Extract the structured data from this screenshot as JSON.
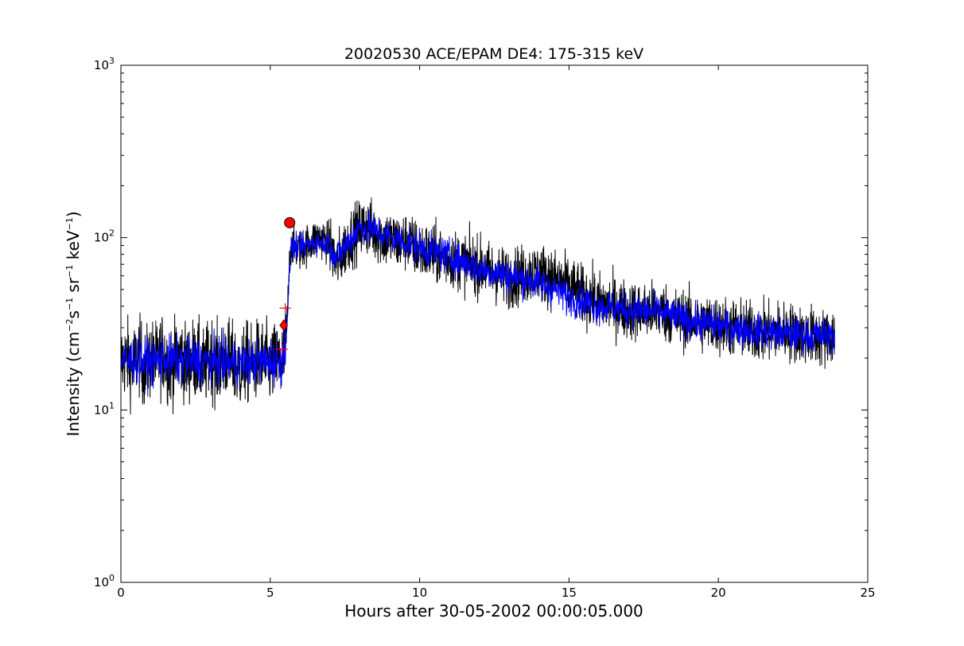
{
  "chart_data": {
    "type": "line",
    "title": "20020530 ACE/EPAM DE4: 175-315 keV",
    "xlabel": "Hours after 30-05-2002 00:00:05.000",
    "ylabel": {
      "prefix": "Intensity (cm",
      "exp1": "−2",
      "part2": "s",
      "exp2": "−1",
      "part3": " sr",
      "exp3": "−1",
      "part4": " keV",
      "exp4": "−1",
      "suffix": ")"
    },
    "xlim": [
      0,
      25
    ],
    "ylim": [
      1,
      1000
    ],
    "yscale": "log",
    "grid": false,
    "x_ticks": [
      {
        "value": 0,
        "label": "0"
      },
      {
        "value": 5,
        "label": "5"
      },
      {
        "value": 10,
        "label": "10"
      },
      {
        "value": 15,
        "label": "15"
      },
      {
        "value": 20,
        "label": "20"
      },
      {
        "value": 25,
        "label": "25"
      }
    ],
    "y_ticks": [
      {
        "value": 1,
        "base": "10",
        "exp": "0"
      },
      {
        "value": 10,
        "base": "10",
        "exp": "1"
      },
      {
        "value": 100,
        "base": "10",
        "exp": "2"
      },
      {
        "value": 1000,
        "base": "10",
        "exp": "3"
      }
    ],
    "colors": {
      "raw": "#000000",
      "smoothed": "#0000ff",
      "markers": "#ff0000"
    },
    "series": [
      {
        "key": "raw",
        "x": [
          0,
          0.2,
          0.4,
          0.6,
          0.8,
          1,
          1.2,
          1.4,
          1.6,
          1.8,
          2,
          2.2,
          2.4,
          2.6,
          2.8,
          3,
          3.2,
          3.4,
          3.6,
          3.8,
          4,
          4.2,
          4.4,
          4.6,
          4.8,
          5,
          5.2,
          5.4,
          5.5,
          5.55,
          5.6,
          5.65,
          5.7,
          5.8,
          6,
          6.2,
          6.4,
          6.6,
          6.8,
          7,
          7.2,
          7.4,
          7.6,
          7.8,
          8,
          8.2,
          8.4,
          8.6,
          8.8,
          9,
          9.2,
          9.4,
          9.6,
          9.8,
          10,
          10.5,
          11,
          11.5,
          12,
          12.5,
          13,
          13.5,
          14,
          14.5,
          15,
          15.5,
          16,
          16.5,
          17,
          17.5,
          18,
          18.5,
          19,
          19.5,
          20,
          20.5,
          21,
          21.5,
          22,
          22.5,
          23,
          23.5,
          23.9
        ],
        "y": [
          19,
          20,
          18,
          21,
          17,
          20,
          19,
          22,
          18,
          19,
          21,
          18,
          20,
          19,
          17,
          21,
          18,
          19,
          20,
          18,
          17,
          19,
          18,
          20,
          19,
          18,
          19,
          20,
          22,
          30,
          45,
          75,
          92,
          88,
          85,
          90,
          95,
          100,
          98,
          92,
          70,
          80,
          95,
          105,
          112,
          118,
          110,
          105,
          100,
          98,
          95,
          92,
          97,
          88,
          84,
          80,
          76,
          72,
          68,
          62,
          58,
          61,
          63,
          58,
          52,
          46,
          42,
          40,
          38,
          37,
          38,
          35,
          33,
          32,
          31,
          30,
          29,
          28,
          29,
          28,
          27,
          26,
          27
        ]
      },
      {
        "key": "smoothed",
        "x": [
          0,
          0.5,
          1,
          1.5,
          2,
          2.5,
          3,
          3.5,
          4,
          4.5,
          5,
          5.4,
          5.5,
          5.6,
          5.7,
          5.8,
          6,
          6.5,
          7,
          7.2,
          7.5,
          8,
          8.5,
          9,
          9.5,
          10,
          11,
          12,
          13,
          14,
          15,
          16,
          17,
          18,
          19,
          20,
          21,
          22,
          23,
          23.9
        ],
        "y": [
          19,
          19.5,
          19,
          20,
          19,
          19.5,
          19,
          19,
          18.5,
          19,
          19,
          19,
          24,
          40,
          90,
          88,
          88,
          95,
          92,
          75,
          88,
          115,
          110,
          100,
          95,
          88,
          78,
          66,
          60,
          55,
          45,
          40,
          38,
          37,
          33,
          31,
          29,
          28,
          27,
          27
        ]
      }
    ],
    "markers": [
      {
        "shape": "circle",
        "x": 5.65,
        "y": 122
      },
      {
        "shape": "diamond",
        "x": 5.45,
        "y": 31
      },
      {
        "shape": "plus",
        "x": 5.5,
        "y": 39
      },
      {
        "shape": "plus",
        "x": 5.4,
        "y": 22.5
      }
    ]
  }
}
